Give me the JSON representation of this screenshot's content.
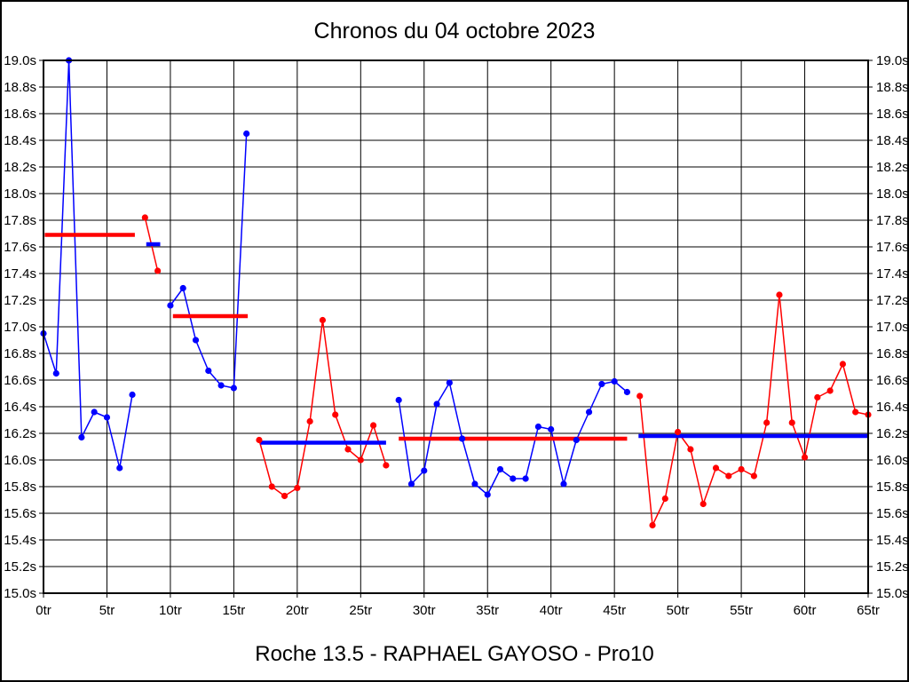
{
  "chart_data": {
    "type": "line",
    "title": "Chronos du 04 octobre 2023",
    "subtitle": "Roche 13.5 - RAPHAEL GAYOSO - Pro10",
    "x_unit": "tr",
    "y_unit": "s",
    "xlim": [
      0,
      65
    ],
    "ylim": [
      15.0,
      19.0
    ],
    "grid": true,
    "legend": "none",
    "colors": {
      "blue": "#0000ff",
      "red": "#ff0000"
    },
    "x_ticks": [
      {
        "value": 0,
        "label": "0tr"
      },
      {
        "value": 5,
        "label": "5tr"
      },
      {
        "value": 10,
        "label": "10tr"
      },
      {
        "value": 15,
        "label": "15tr"
      },
      {
        "value": 20,
        "label": "20tr"
      },
      {
        "value": 25,
        "label": "25tr"
      },
      {
        "value": 30,
        "label": "30tr"
      },
      {
        "value": 35,
        "label": "35tr"
      },
      {
        "value": 40,
        "label": "40tr"
      },
      {
        "value": 45,
        "label": "45tr"
      },
      {
        "value": 50,
        "label": "50tr"
      },
      {
        "value": 55,
        "label": "55tr"
      },
      {
        "value": 60,
        "label": "60tr"
      },
      {
        "value": 65,
        "label": "65tr"
      }
    ],
    "y_ticks": [
      {
        "value": 19.0,
        "label": "19.0s"
      },
      {
        "value": 18.8,
        "label": "18.8s"
      },
      {
        "value": 18.6,
        "label": "18.6s"
      },
      {
        "value": 18.4,
        "label": "18.4s"
      },
      {
        "value": 18.2,
        "label": "18.2s"
      },
      {
        "value": 18.0,
        "label": "18.0s"
      },
      {
        "value": 17.8,
        "label": "17.8s"
      },
      {
        "value": 17.6,
        "label": "17.6s"
      },
      {
        "value": 17.4,
        "label": "17.4s"
      },
      {
        "value": 17.2,
        "label": "17.2s"
      },
      {
        "value": 17.0,
        "label": "17.0s"
      },
      {
        "value": 16.8,
        "label": "16.8s"
      },
      {
        "value": 16.6,
        "label": "16.6s"
      },
      {
        "value": 16.4,
        "label": "16.4s"
      },
      {
        "value": 16.2,
        "label": "16.2s"
      },
      {
        "value": 16.0,
        "label": "16.0s"
      },
      {
        "value": 15.8,
        "label": "15.8s"
      },
      {
        "value": 15.6,
        "label": "15.6s"
      },
      {
        "value": 15.4,
        "label": "15.4s"
      },
      {
        "value": 15.2,
        "label": "15.2s"
      },
      {
        "value": 15.0,
        "label": "15.0s"
      }
    ],
    "series": [
      {
        "name": "relais-1-bleu",
        "color": "blue",
        "start_lap": 0,
        "values": [
          16.95,
          16.65,
          19.0,
          16.17,
          16.36,
          16.32,
          15.94,
          16.49
        ]
      },
      {
        "name": "relais-2-rouge",
        "color": "red",
        "start_lap": 8,
        "values": [
          17.82,
          17.42
        ]
      },
      {
        "name": "relais-3-bleu",
        "color": "blue",
        "start_lap": 10,
        "values": [
          17.16,
          17.29,
          16.9,
          16.67,
          16.56,
          16.54,
          18.45
        ]
      },
      {
        "name": "relais-4-rouge",
        "color": "red",
        "start_lap": 17,
        "values": [
          16.15,
          15.8,
          15.73,
          15.79,
          16.29,
          17.05,
          16.34,
          16.08,
          16.0,
          16.26,
          15.96
        ]
      },
      {
        "name": "relais-5-bleu",
        "color": "blue",
        "start_lap": 28,
        "values": [
          16.45,
          15.82,
          15.92,
          16.42,
          16.58,
          16.16,
          15.82,
          15.74,
          15.93,
          15.86,
          15.86,
          16.25,
          16.23,
          15.82,
          16.15,
          16.36,
          16.57,
          16.59,
          16.51
        ]
      },
      {
        "name": "relais-6-rouge",
        "color": "red",
        "start_lap": 47,
        "values": [
          16.48,
          15.51,
          15.71,
          16.21,
          16.08,
          15.67,
          15.94,
          15.88,
          15.93,
          15.88,
          16.28,
          17.24,
          16.28,
          16.02,
          16.47,
          16.52,
          16.72,
          16.36,
          16.34
        ]
      }
    ],
    "average_lines": [
      {
        "name": "moyenne-relais-1",
        "color": "red",
        "value": 17.69,
        "from_lap": 0.1,
        "to_lap": 7.2
      },
      {
        "name": "moyenne-relais-2",
        "color": "blue",
        "value": 17.62,
        "from_lap": 8.1,
        "to_lap": 9.2
      },
      {
        "name": "moyenne-relais-3",
        "color": "red",
        "value": 17.08,
        "from_lap": 10.2,
        "to_lap": 16.1
      },
      {
        "name": "moyenne-relais-4",
        "color": "blue",
        "value": 16.13,
        "from_lap": 17.1,
        "to_lap": 27.0
      },
      {
        "name": "moyenne-relais-5",
        "color": "red",
        "value": 16.16,
        "from_lap": 28.0,
        "to_lap": 46.0
      },
      {
        "name": "moyenne-relais-6",
        "color": "blue",
        "value": 16.18,
        "from_lap": 46.9,
        "to_lap": 65.0
      }
    ]
  }
}
